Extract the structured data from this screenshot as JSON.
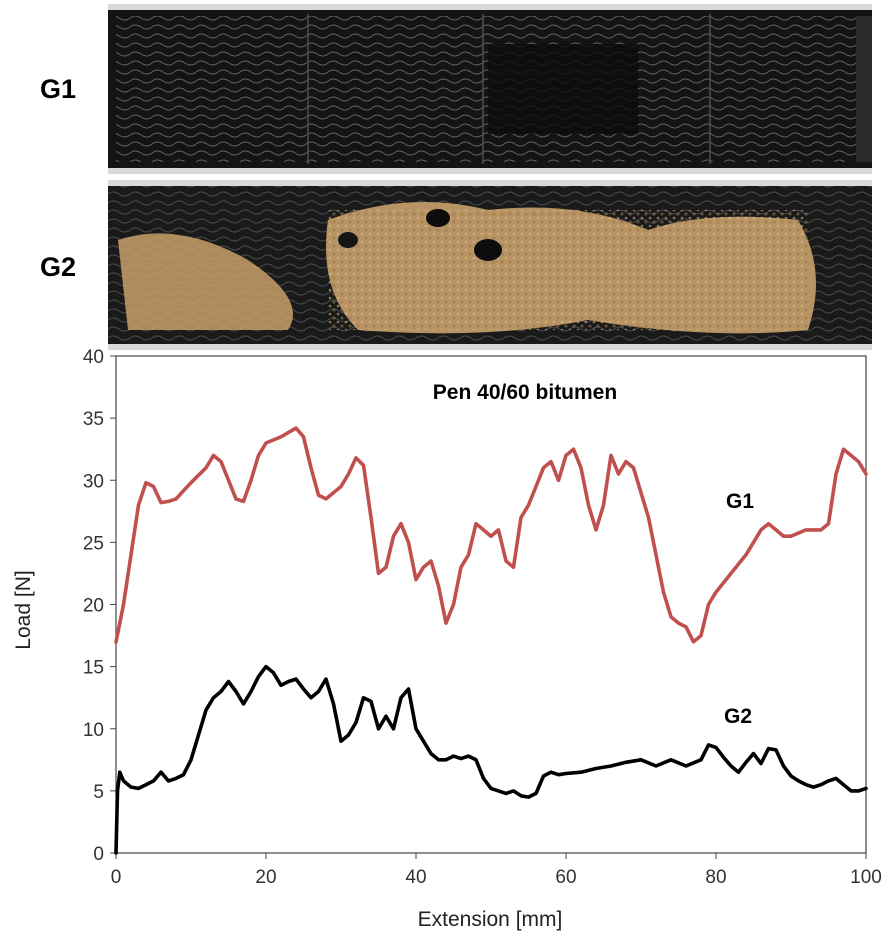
{
  "photos": {
    "samples": [
      {
        "label": "G1",
        "surface": "#141414",
        "coating": "#1f2226"
      },
      {
        "label": "G2",
        "surface": "#1a1a1a",
        "coating": "#c9a06a"
      }
    ]
  },
  "chart_data": {
    "type": "line",
    "title": "Pen 40/60 bitumen",
    "xlabel": "Extension [mm]",
    "ylabel": "Load [N]",
    "xlim": [
      0,
      100
    ],
    "ylim": [
      0,
      40
    ],
    "xticks": [
      0,
      20,
      40,
      60,
      80,
      100
    ],
    "yticks": [
      0,
      5,
      10,
      15,
      20,
      25,
      30,
      35,
      40
    ],
    "grid": false,
    "series": [
      {
        "name": "G1",
        "color": "#c0504d",
        "x": [
          0,
          0.5,
          1,
          2,
          3,
          4,
          5,
          6,
          7,
          8,
          10,
          12,
          13,
          14,
          16,
          17,
          18,
          19,
          20,
          22,
          24,
          25,
          26,
          27,
          28,
          30,
          31,
          32,
          33,
          34,
          35,
          36,
          37,
          38,
          39,
          40,
          41,
          42,
          43,
          44,
          45,
          46,
          47,
          48,
          49,
          50,
          51,
          52,
          53,
          54,
          55,
          56,
          57,
          58,
          59,
          60,
          61,
          62,
          63,
          64,
          65,
          66,
          67,
          68,
          69,
          70,
          71,
          72,
          73,
          74,
          75,
          76,
          77,
          78,
          79,
          80,
          82,
          84,
          86,
          87,
          88,
          89,
          90,
          92,
          94,
          95,
          96,
          97,
          98,
          99,
          100
        ],
        "y": [
          17,
          18.5,
          20,
          24,
          28,
          29.8,
          29.5,
          28.2,
          28.3,
          28.5,
          29.8,
          31,
          32,
          31.5,
          28.5,
          28.3,
          30,
          32,
          33,
          33.5,
          34.2,
          33.5,
          31,
          28.8,
          28.5,
          29.5,
          30.5,
          31.8,
          31.2,
          27,
          22.5,
          23,
          25.5,
          26.5,
          25,
          22,
          23,
          23.5,
          21.5,
          18.5,
          20,
          23,
          24,
          26.5,
          26,
          25.5,
          26,
          23.5,
          23,
          27,
          28,
          29.5,
          31,
          31.5,
          30,
          32,
          32.5,
          31,
          28,
          26,
          28,
          32,
          30.5,
          31.5,
          31,
          29,
          27,
          24,
          21,
          19,
          18.5,
          18.2,
          17,
          17.5,
          20,
          21,
          22.5,
          24,
          26,
          26.5,
          26,
          25.5,
          25.5,
          26,
          26,
          26.5,
          30.5,
          32.5,
          32,
          31.5,
          30.5
        ]
      },
      {
        "name": "G2",
        "color": "#000000",
        "x": [
          0,
          0.2,
          0.5,
          1,
          2,
          3,
          4,
          5,
          6,
          7,
          8,
          9,
          10,
          11,
          12,
          13,
          14,
          15,
          16,
          17,
          18,
          19,
          20,
          21,
          22,
          23,
          24,
          25,
          26,
          27,
          28,
          29,
          30,
          31,
          32,
          33,
          34,
          35,
          36,
          37,
          38,
          39,
          40,
          41,
          42,
          43,
          44,
          45,
          46,
          47,
          48,
          49,
          50,
          51,
          52,
          53,
          54,
          55,
          56,
          57,
          58,
          59,
          60,
          62,
          64,
          66,
          68,
          70,
          72,
          74,
          76,
          78,
          79,
          80,
          81,
          82,
          83,
          84,
          85,
          86,
          87,
          88,
          89,
          90,
          91,
          92,
          93,
          94,
          95,
          96,
          97,
          98,
          99,
          100
        ],
        "y": [
          0,
          5,
          6.5,
          5.8,
          5.3,
          5.2,
          5.5,
          5.8,
          6.5,
          5.8,
          6,
          6.3,
          7.5,
          9.5,
          11.5,
          12.5,
          13,
          13.8,
          13,
          12,
          13,
          14.2,
          15,
          14.5,
          13.5,
          13.8,
          14,
          13.2,
          12.5,
          13,
          14,
          12,
          9,
          9.5,
          10.5,
          12.5,
          12.2,
          10,
          11,
          10,
          12.5,
          13.2,
          10,
          9,
          8,
          7.5,
          7.5,
          7.8,
          7.6,
          7.8,
          7.5,
          6,
          5.2,
          5,
          4.8,
          5,
          4.6,
          4.5,
          4.8,
          6.2,
          6.5,
          6.3,
          6.4,
          6.5,
          6.8,
          7,
          7.3,
          7.5,
          7,
          7.5,
          7,
          7.5,
          8.7,
          8.5,
          7.7,
          7,
          6.5,
          7.3,
          8,
          7.2,
          8.4,
          8.3,
          7,
          6.2,
          5.8,
          5.5,
          5.3,
          5.5,
          5.8,
          6,
          5.5,
          5,
          5,
          5.2
        ]
      }
    ]
  }
}
